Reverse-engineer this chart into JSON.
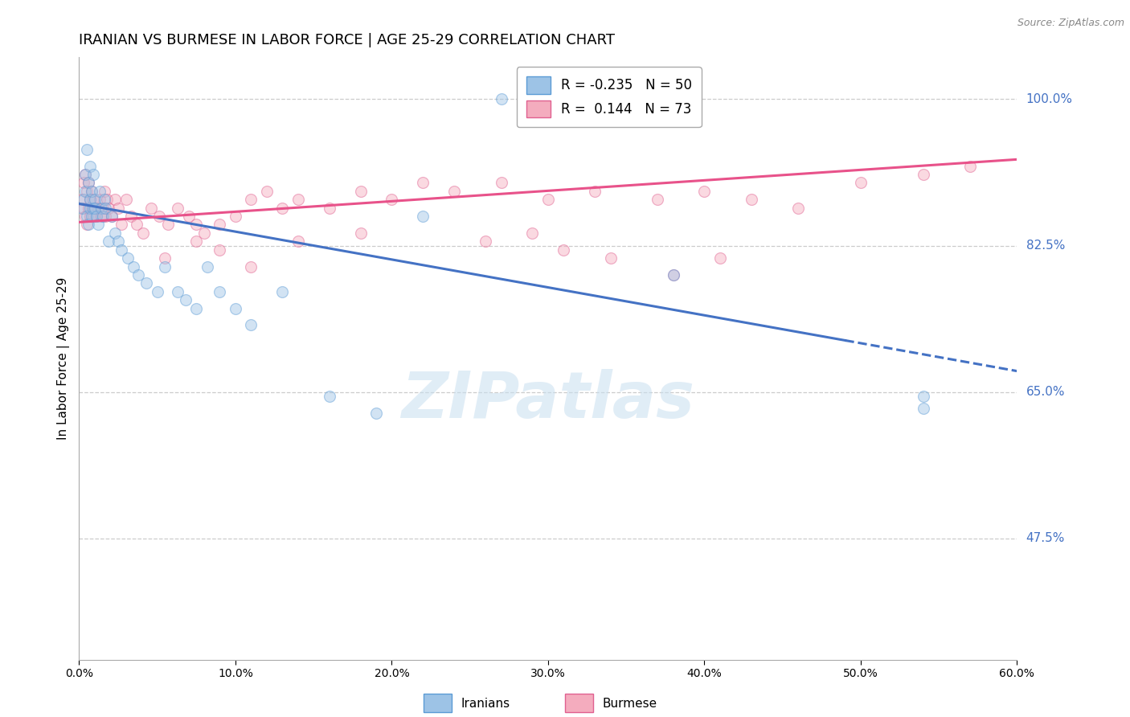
{
  "title": "IRANIAN VS BURMESE IN LABOR FORCE | AGE 25-29 CORRELATION CHART",
  "source": "Source: ZipAtlas.com",
  "ylabel": "In Labor Force | Age 25-29",
  "xlim": [
    0.0,
    0.6
  ],
  "ylim": [
    0.33,
    1.05
  ],
  "yticks": [
    0.475,
    0.65,
    0.825,
    1.0
  ],
  "ytick_labels": [
    "47.5%",
    "65.0%",
    "82.5%",
    "100.0%"
  ],
  "xticks": [
    0.0,
    0.1,
    0.2,
    0.3,
    0.4,
    0.5,
    0.6
  ],
  "xtick_labels": [
    "0.0%",
    "10.0%",
    "20.0%",
    "30.0%",
    "40.0%",
    "50.0%",
    "60.0%"
  ],
  "iranians_color": "#9DC3E6",
  "burmese_color": "#F4ACBE",
  "iranians_edge_color": "#5B9BD5",
  "burmese_edge_color": "#E06090",
  "iranians_line_color": "#4472C4",
  "burmese_line_color": "#E8528A",
  "R_iranians": -0.235,
  "N_iranians": 50,
  "R_burmese": 0.144,
  "N_burmese": 73,
  "iranians_x": [
    0.002,
    0.003,
    0.004,
    0.004,
    0.005,
    0.005,
    0.006,
    0.006,
    0.007,
    0.007,
    0.007,
    0.008,
    0.008,
    0.009,
    0.009,
    0.01,
    0.01,
    0.011,
    0.012,
    0.013,
    0.014,
    0.015,
    0.016,
    0.017,
    0.019,
    0.021,
    0.023,
    0.025,
    0.027,
    0.031,
    0.035,
    0.038,
    0.043,
    0.05,
    0.055,
    0.063,
    0.068,
    0.075,
    0.082,
    0.09,
    0.1,
    0.11,
    0.13,
    0.16,
    0.19,
    0.22,
    0.27,
    0.38,
    0.54,
    0.54
  ],
  "iranians_y": [
    0.87,
    0.88,
    0.89,
    0.91,
    0.86,
    0.94,
    0.85,
    0.9,
    0.87,
    0.92,
    0.88,
    0.86,
    0.89,
    0.91,
    0.87,
    0.88,
    0.87,
    0.86,
    0.85,
    0.89,
    0.87,
    0.86,
    0.88,
    0.87,
    0.83,
    0.86,
    0.84,
    0.83,
    0.82,
    0.81,
    0.8,
    0.79,
    0.78,
    0.77,
    0.8,
    0.77,
    0.76,
    0.75,
    0.8,
    0.77,
    0.75,
    0.73,
    0.77,
    0.645,
    0.625,
    0.86,
    1.0,
    0.79,
    0.645,
    0.63
  ],
  "burmese_x": [
    0.002,
    0.003,
    0.003,
    0.004,
    0.004,
    0.005,
    0.005,
    0.006,
    0.006,
    0.007,
    0.007,
    0.008,
    0.008,
    0.009,
    0.009,
    0.01,
    0.011,
    0.012,
    0.013,
    0.014,
    0.015,
    0.016,
    0.017,
    0.018,
    0.019,
    0.021,
    0.023,
    0.025,
    0.027,
    0.03,
    0.033,
    0.037,
    0.041,
    0.046,
    0.051,
    0.057,
    0.063,
    0.07,
    0.075,
    0.08,
    0.09,
    0.1,
    0.11,
    0.12,
    0.13,
    0.14,
    0.16,
    0.18,
    0.2,
    0.22,
    0.24,
    0.27,
    0.3,
    0.33,
    0.37,
    0.4,
    0.43,
    0.46,
    0.5,
    0.54,
    0.57,
    0.38,
    0.41,
    0.26,
    0.29,
    0.31,
    0.34,
    0.18,
    0.14,
    0.11,
    0.09,
    0.075,
    0.055
  ],
  "burmese_y": [
    0.88,
    0.87,
    0.9,
    0.86,
    0.91,
    0.85,
    0.89,
    0.87,
    0.9,
    0.86,
    0.88,
    0.87,
    0.89,
    0.86,
    0.88,
    0.87,
    0.86,
    0.87,
    0.88,
    0.86,
    0.87,
    0.89,
    0.86,
    0.88,
    0.87,
    0.86,
    0.88,
    0.87,
    0.85,
    0.88,
    0.86,
    0.85,
    0.84,
    0.87,
    0.86,
    0.85,
    0.87,
    0.86,
    0.85,
    0.84,
    0.85,
    0.86,
    0.88,
    0.89,
    0.87,
    0.88,
    0.87,
    0.89,
    0.88,
    0.9,
    0.89,
    0.9,
    0.88,
    0.89,
    0.88,
    0.89,
    0.88,
    0.87,
    0.9,
    0.91,
    0.92,
    0.79,
    0.81,
    0.83,
    0.84,
    0.82,
    0.81,
    0.84,
    0.83,
    0.8,
    0.82,
    0.83,
    0.81
  ],
  "iranians_line_y0": 0.875,
  "iranians_line_y1": 0.675,
  "burmese_line_y0": 0.853,
  "burmese_line_y1": 0.928,
  "trend_line_split_x": 0.49,
  "watermark_text": "ZIPatlas",
  "background_color": "#ffffff",
  "grid_color": "#cccccc",
  "title_fontsize": 13,
  "axis_label_fontsize": 11,
  "tick_fontsize": 10,
  "marker_size": 100,
  "marker_alpha": 0.45,
  "right_tick_color": "#4472C4",
  "source_color": "#888888"
}
